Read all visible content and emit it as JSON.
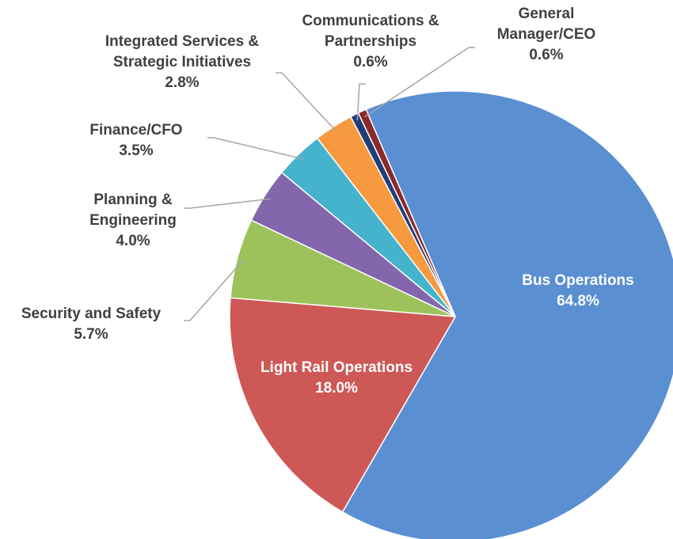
{
  "chart_data": {
    "type": "pie",
    "categories": [
      "Bus Operations",
      "Light Rail Operations",
      "Security and Safety",
      "Planning & Engineering",
      "Finance/CFO",
      "Integrated Services & Strategic Initiatives",
      "Communications & Partnerships",
      "General Manager/CEO"
    ],
    "values": [
      64.8,
      18.0,
      5.7,
      4.0,
      3.5,
      2.8,
      0.6,
      0.6
    ],
    "value_labels": [
      "64.8%",
      "18.0%",
      "5.7%",
      "4.0%",
      "3.5%",
      "2.8%",
      "0.6%",
      "0.6%"
    ],
    "colors": [
      "#5a8fd2",
      "#cd5856",
      "#9dc25c",
      "#8366ab",
      "#46b3cd",
      "#f6993f",
      "#203e78",
      "#8a2a2a"
    ]
  }
}
